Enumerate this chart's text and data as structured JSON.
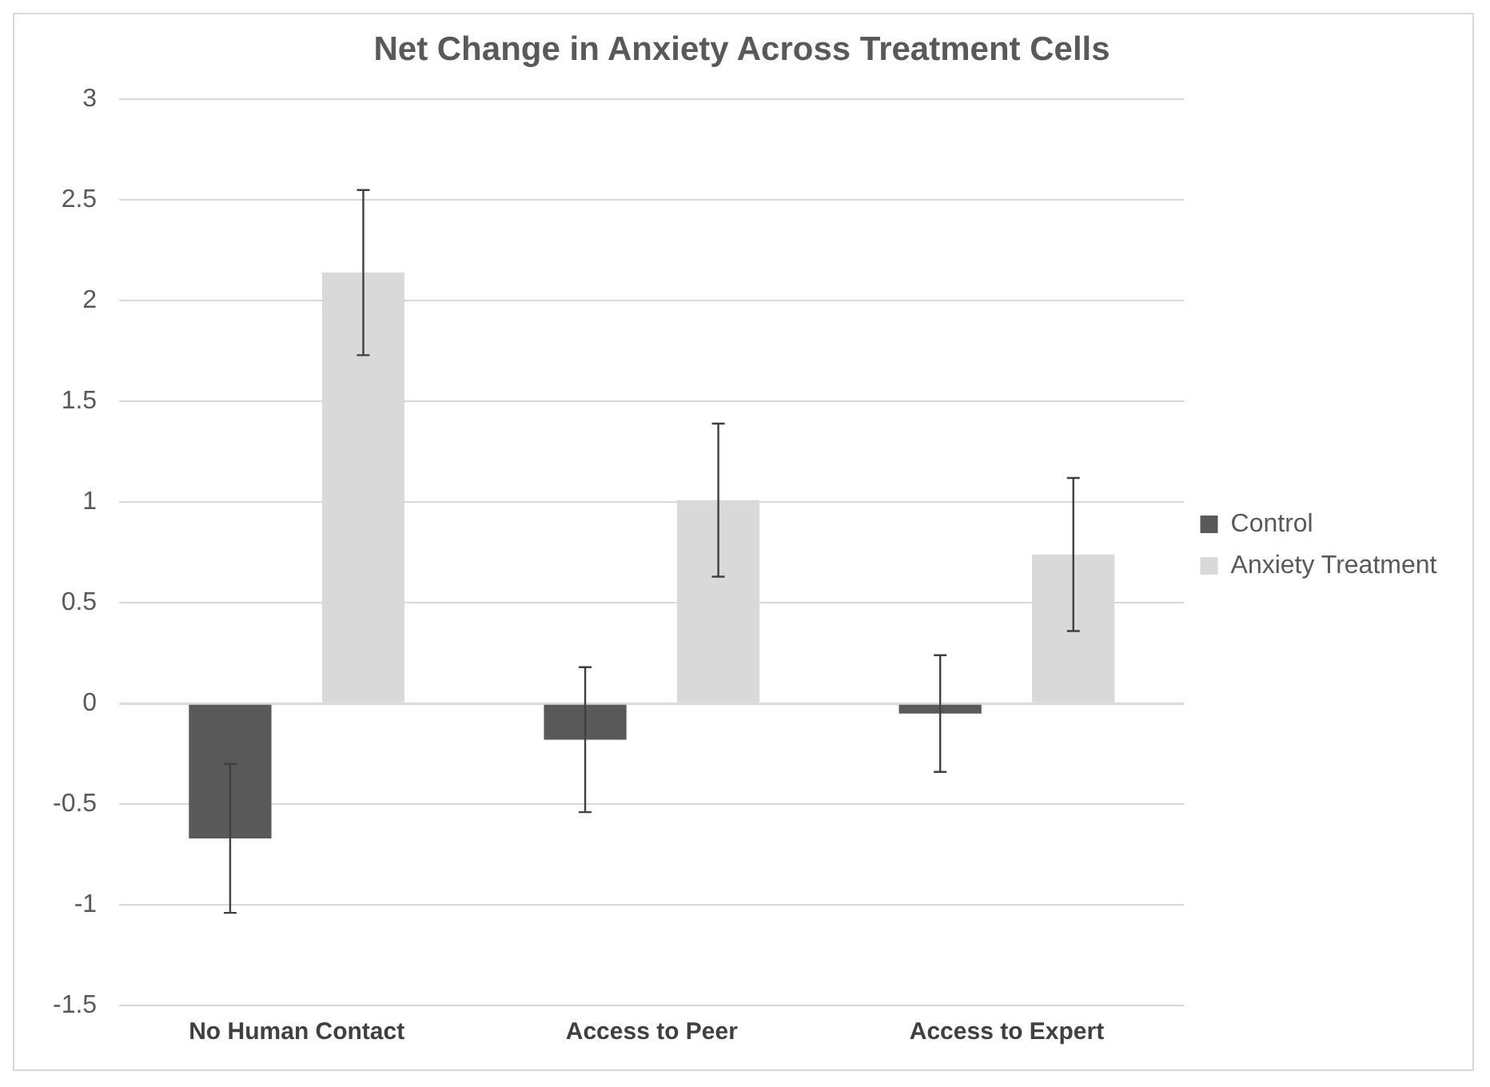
{
  "chart_data": {
    "type": "bar",
    "title": "Net Change in Anxiety Across Treatment Cells",
    "categories": [
      "No Human Contact",
      "Access to Peer",
      "Access to Expert"
    ],
    "series": [
      {
        "name": "Control",
        "color": "#595959",
        "values": [
          -0.67,
          -0.18,
          -0.05
        ],
        "errors": [
          0.37,
          0.36,
          0.29
        ]
      },
      {
        "name": "Anxiety Treatment",
        "color": "#d9d9d9",
        "values": [
          2.14,
          1.01,
          0.74
        ],
        "errors": [
          0.41,
          0.38,
          0.38
        ]
      }
    ],
    "ylim": [
      -1.5,
      3
    ],
    "yticks": [
      -1.5,
      -1,
      -0.5,
      0,
      0.5,
      1,
      1.5,
      2,
      2.5,
      3
    ],
    "grid": "y",
    "legend": "right"
  }
}
